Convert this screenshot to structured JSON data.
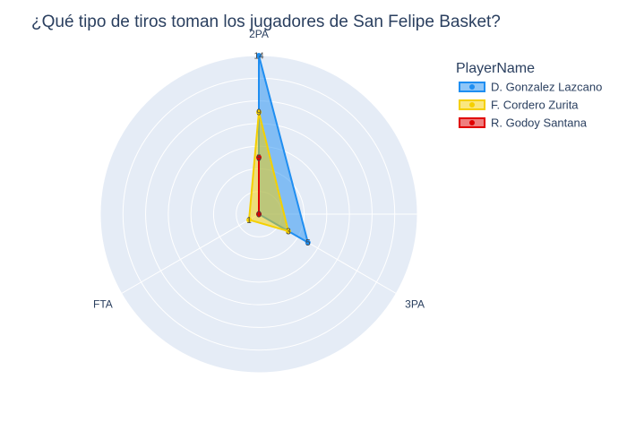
{
  "chart_data": {
    "type": "radar",
    "title": "¿Qué tipo de tiros toman los jugadores de San Felipe Basket?",
    "axes": [
      "2PA",
      "3PA",
      "FTA"
    ],
    "rlim": [
      0,
      14
    ],
    "legend_title": "PlayerName",
    "legend_position": "top-right",
    "series": [
      {
        "name": "D. Gonzalez Lazcano",
        "color": "#1f8ef1",
        "values": [
          14,
          5,
          0
        ],
        "labels": [
          "14",
          "5",
          "0"
        ]
      },
      {
        "name": "F. Cordero Zurita",
        "color": "#f5d000",
        "values": [
          9,
          3,
          1
        ],
        "labels": [
          "9",
          "3",
          "1"
        ]
      },
      {
        "name": "R. Godoy Santana",
        "color": "#e00000",
        "values": [
          5,
          0,
          0
        ],
        "labels": [
          "5",
          "0",
          "0"
        ]
      }
    ]
  }
}
